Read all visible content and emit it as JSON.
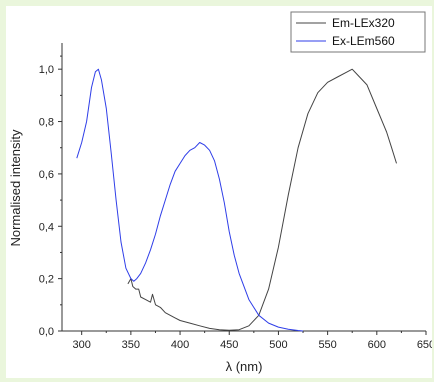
{
  "chart_data": {
    "type": "line",
    "xlabel": "λ (nm)",
    "ylabel": "Normalised intensity",
    "xlim": [
      280,
      650
    ],
    "ylim": [
      0,
      1.1
    ],
    "x_ticks": [
      300,
      350,
      400,
      450,
      500,
      550,
      600,
      650
    ],
    "x_tick_labels": [
      "300",
      "350",
      "400",
      "450",
      "500",
      "550",
      "600",
      "650"
    ],
    "y_ticks": [
      0,
      0.2,
      0.4,
      0.6,
      0.8,
      1.0
    ],
    "y_tick_labels": [
      "0,0",
      "0,2",
      "0,4",
      "0,6",
      "0,8",
      "1,0"
    ],
    "grid": false,
    "legend_position": "top-right",
    "series": [
      {
        "name": "Em-LEx320",
        "color": "#444444",
        "x": [
          347,
          350,
          352,
          355,
          358,
          360,
          365,
          370,
          372,
          375,
          380,
          385,
          390,
          395,
          400,
          410,
          420,
          430,
          440,
          450,
          460,
          470,
          480,
          490,
          500,
          510,
          520,
          530,
          540,
          550,
          560,
          570,
          575,
          580,
          590,
          600,
          610,
          615,
          620
        ],
        "y": [
          0.18,
          0.2,
          0.17,
          0.16,
          0.16,
          0.13,
          0.12,
          0.11,
          0.14,
          0.1,
          0.09,
          0.07,
          0.06,
          0.05,
          0.04,
          0.03,
          0.02,
          0.01,
          0.005,
          0.003,
          0.005,
          0.02,
          0.06,
          0.16,
          0.32,
          0.52,
          0.7,
          0.83,
          0.91,
          0.95,
          0.97,
          0.99,
          1.0,
          0.98,
          0.94,
          0.85,
          0.76,
          0.7,
          0.64
        ]
      },
      {
        "name": "Ex-LEm560",
        "color": "#2f3ee8",
        "x": [
          295,
          300,
          305,
          310,
          314,
          317,
          320,
          325,
          330,
          335,
          340,
          345,
          350,
          353,
          356,
          360,
          365,
          370,
          375,
          380,
          385,
          390,
          395,
          400,
          405,
          410,
          415,
          420,
          425,
          430,
          435,
          440,
          445,
          450,
          455,
          460,
          470,
          480,
          490,
          500,
          510,
          520,
          525
        ],
        "y": [
          0.66,
          0.72,
          0.8,
          0.93,
          0.99,
          1.0,
          0.96,
          0.85,
          0.68,
          0.5,
          0.34,
          0.24,
          0.2,
          0.19,
          0.2,
          0.22,
          0.26,
          0.31,
          0.37,
          0.44,
          0.5,
          0.56,
          0.61,
          0.64,
          0.67,
          0.69,
          0.7,
          0.72,
          0.71,
          0.69,
          0.65,
          0.58,
          0.49,
          0.38,
          0.29,
          0.22,
          0.12,
          0.06,
          0.03,
          0.015,
          0.007,
          0.002,
          0.0
        ]
      }
    ]
  }
}
